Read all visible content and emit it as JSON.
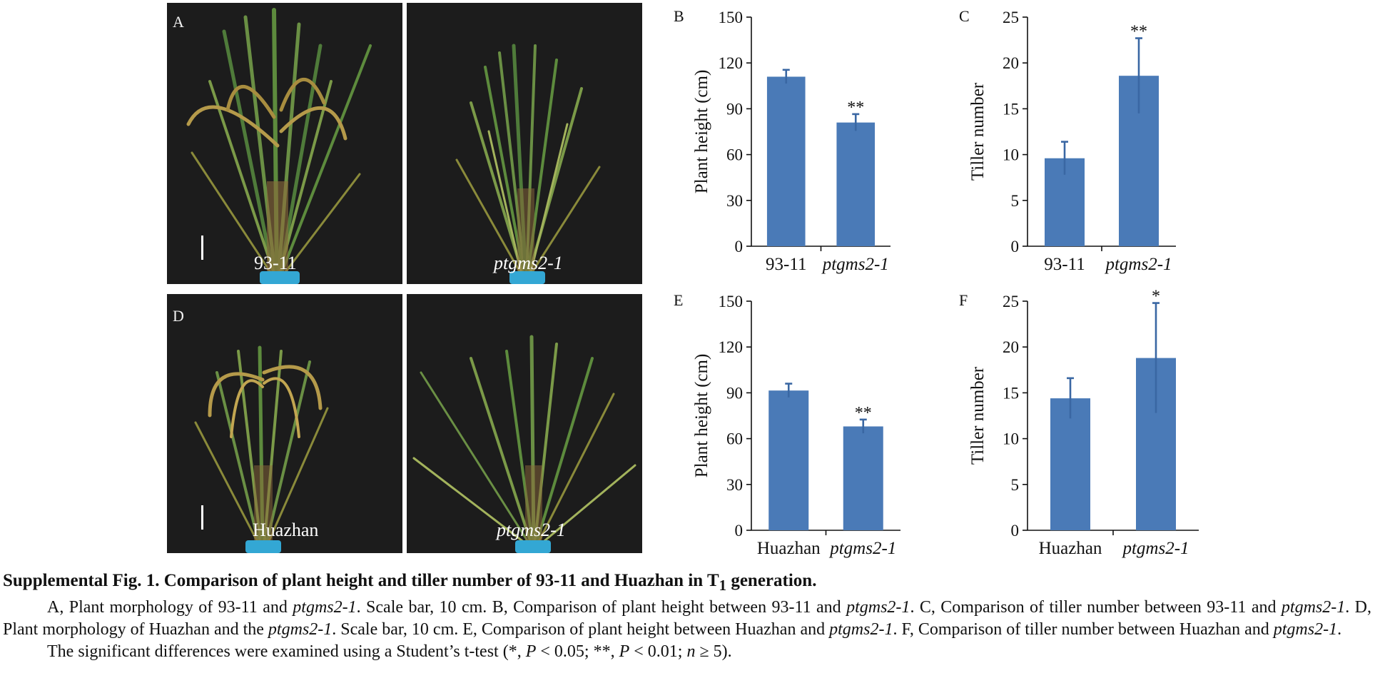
{
  "photos": [
    {
      "panel": "A",
      "left_label": "93-11",
      "right_label": "ptgms2-1"
    },
    {
      "panel": "D",
      "left_label": "Huazhan",
      "right_label": "ptgms2-1"
    }
  ],
  "chart_data": [
    {
      "panel": "B",
      "type": "bar",
      "categories": [
        "93-11",
        "ptgms2-1"
      ],
      "values": [
        111,
        81
      ],
      "errors": [
        4.5,
        5.5
      ],
      "significance": [
        "",
        "**"
      ],
      "ylabel": "Plant height (cm)",
      "ylim": [
        0,
        150
      ],
      "yticks": [
        0,
        30,
        60,
        90,
        120,
        150
      ],
      "color": "#4a7ab7"
    },
    {
      "panel": "C",
      "type": "bar",
      "categories": [
        "93-11",
        "ptgms2-1"
      ],
      "values": [
        9.6,
        18.6
      ],
      "errors": [
        1.8,
        4.1
      ],
      "significance": [
        "",
        "**"
      ],
      "ylabel": "Tiller number",
      "ylim": [
        0,
        25
      ],
      "yticks": [
        0,
        5,
        10,
        15,
        20,
        25
      ],
      "color": "#4a7ab7"
    },
    {
      "panel": "E",
      "type": "bar",
      "categories": [
        "Huazhan",
        "ptgms2-1"
      ],
      "values": [
        91.5,
        68
      ],
      "errors": [
        4.5,
        4.5
      ],
      "significance": [
        "",
        "**"
      ],
      "ylabel": "Plant height (cm)",
      "ylim": [
        0,
        150
      ],
      "yticks": [
        0,
        30,
        60,
        90,
        120,
        150
      ],
      "color": "#4a7ab7"
    },
    {
      "panel": "F",
      "type": "bar",
      "categories": [
        "Huazhan",
        "ptgms2-1"
      ],
      "values": [
        14.4,
        18.8
      ],
      "errors": [
        2.2,
        6.0
      ],
      "significance": [
        "",
        "*"
      ],
      "ylabel": "Tiller number",
      "ylim": [
        0,
        25
      ],
      "yticks": [
        0,
        5,
        10,
        15,
        20,
        25
      ],
      "color": "#4a7ab7"
    }
  ],
  "caption": {
    "title_prefix": "Supplemental Fig. 1. Comparison of plant height and tiller number of 93-11 and Huazhan in T",
    "title_sub": "1",
    "title_suffix": " generation.",
    "p1": [
      {
        "t": "A, Plant morphology of 93-11 and ",
        "i": false
      },
      {
        "t": "ptgms2-1",
        "i": true
      },
      {
        "t": ". Scale bar, 10 cm. B, Comparison of plant height between 93-11 and ",
        "i": false
      },
      {
        "t": "ptgms2-1",
        "i": true
      },
      {
        "t": ". C, Comparison of tiller number between 93-11 and ",
        "i": false
      },
      {
        "t": "ptgms2-1",
        "i": true
      },
      {
        "t": ". D, Plant morphology of Huazhan and the ",
        "i": false
      },
      {
        "t": "ptgms2-1",
        "i": true
      },
      {
        "t": ". Scale bar, 10 cm. E, Comparison of plant height between Huazhan and ",
        "i": false
      },
      {
        "t": "ptgms2-1",
        "i": true
      },
      {
        "t": ". F, Comparison of tiller number between Huazhan and ",
        "i": false
      },
      {
        "t": "ptgms2-1",
        "i": true
      },
      {
        "t": ".",
        "i": false
      }
    ],
    "p2": [
      {
        "t": "The significant differences were examined using a Student’s t-test (*, ",
        "i": false
      },
      {
        "t": "P",
        "i": true
      },
      {
        "t": " < 0.05; **, ",
        "i": false
      },
      {
        "t": "P",
        "i": true
      },
      {
        "t": " < 0.01; ",
        "i": false
      },
      {
        "t": "n",
        "i": true
      },
      {
        "t": " ≥ 5).",
        "i": false
      }
    ]
  }
}
